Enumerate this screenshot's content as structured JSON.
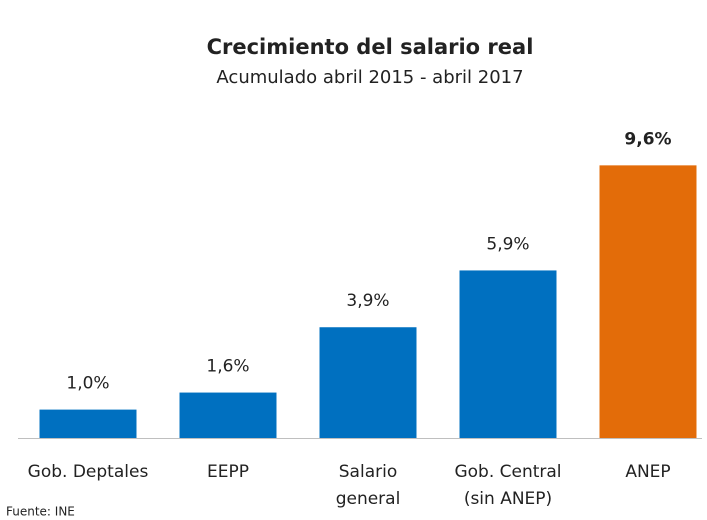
{
  "chart_data": {
    "type": "bar",
    "title": "Crecimiento del salario real",
    "subtitle": "Acumulado abril 2015 - abril 2017",
    "source": "Fuente: INE",
    "categories": [
      "Gob. Deptales",
      "EEPP",
      [
        "Salario",
        "general"
      ],
      [
        "Gob. Central",
        "(sin ANEP)"
      ],
      "ANEP"
    ],
    "values": [
      1.0,
      1.6,
      3.9,
      5.9,
      9.6
    ],
    "value_labels": [
      "1,0%",
      "1,6%",
      "3,9%",
      "5,9%",
      "9,6%"
    ],
    "colors": [
      "#0070c0",
      "#0070c0",
      "#0070c0",
      "#0070c0",
      "#e36c09"
    ],
    "bold_labels": [
      false,
      false,
      false,
      false,
      true
    ],
    "ylim": [
      0,
      10
    ]
  }
}
